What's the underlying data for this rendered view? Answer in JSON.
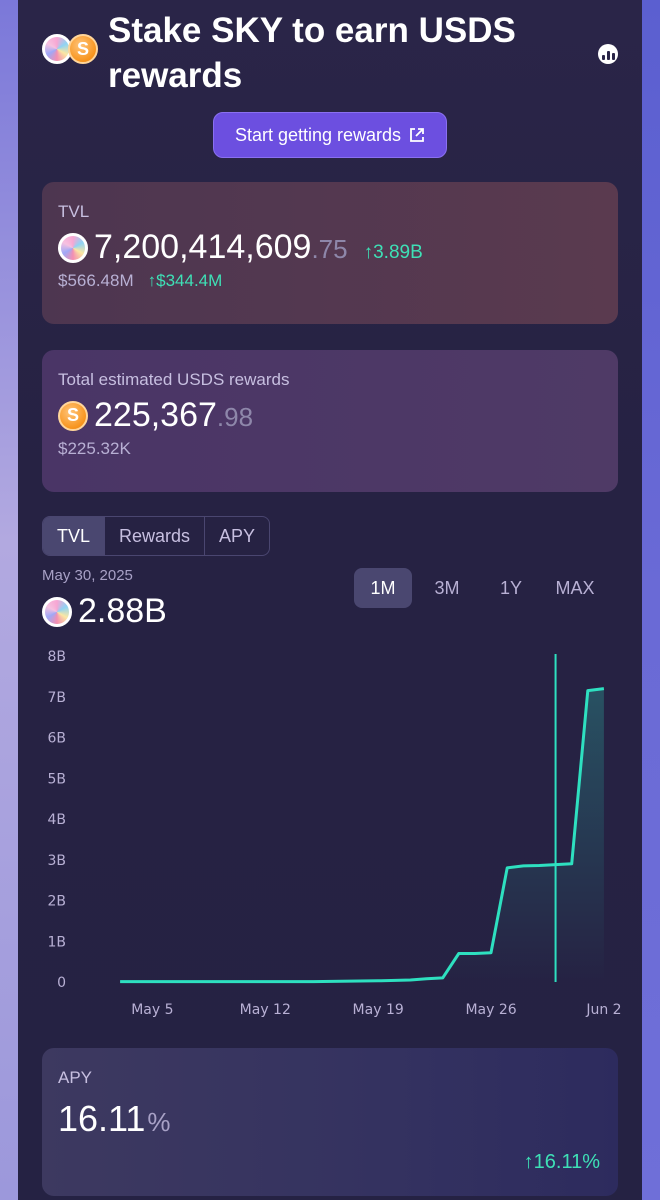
{
  "header": {
    "title": "Stake SKY to earn USDS rewards",
    "cta_label": "Start getting rewards"
  },
  "tvl_card": {
    "label": "TVL",
    "value_main": "7,200,414,609",
    "value_decimal": ".75",
    "change": "↑3.89B",
    "usd_value": "$566.48M",
    "usd_change": "↑$344.4M"
  },
  "rewards_card": {
    "label": "Total estimated USDS rewards",
    "value_main": "225,367",
    "value_decimal": ".98",
    "usd_value": "$225.32K",
    "usds_symbol": "S"
  },
  "chart_section": {
    "tabs": [
      "TVL",
      "Rewards",
      "APY"
    ],
    "active_tab": "TVL",
    "date": "May 30, 2025",
    "value": "2.88B",
    "ranges": [
      "1M",
      "3M",
      "1Y",
      "MAX"
    ],
    "active_range": "1M"
  },
  "apy_card": {
    "label": "APY",
    "value": "16.11",
    "percent_sign": "%",
    "change": "↑16.11%"
  },
  "colors": {
    "accent": "#6c4fe0",
    "positive": "#3ee0b6",
    "line": "#2ee0c0"
  },
  "icons": [
    "sky-coin-icon",
    "usds-coin-icon",
    "external-link-icon",
    "chart-icon"
  ],
  "chart_data": {
    "type": "line",
    "x": [
      "May 3",
      "May 5",
      "May 8",
      "May 12",
      "May 15",
      "May 19",
      "May 21",
      "May 22",
      "May 23",
      "May 24",
      "May 25",
      "May 26",
      "May 27",
      "May 28",
      "May 29",
      "May 30",
      "May 31",
      "Jun 1",
      "Jun 2"
    ],
    "values": [
      0.01,
      0.01,
      0.01,
      0.01,
      0.01,
      0.03,
      0.05,
      0.08,
      0.1,
      0.7,
      0.7,
      0.72,
      2.8,
      2.85,
      2.86,
      2.88,
      2.9,
      7.15,
      7.2
    ],
    "xticks": [
      "May 5",
      "May 12",
      "May 19",
      "May 26",
      "Jun 2"
    ],
    "yticks": [
      "0",
      "1B",
      "2B",
      "3B",
      "4B",
      "5B",
      "6B",
      "7B",
      "8B"
    ],
    "ylim": [
      0,
      8
    ],
    "ylabel": "",
    "xlabel": "",
    "highlight": "May 30",
    "grid": false
  }
}
